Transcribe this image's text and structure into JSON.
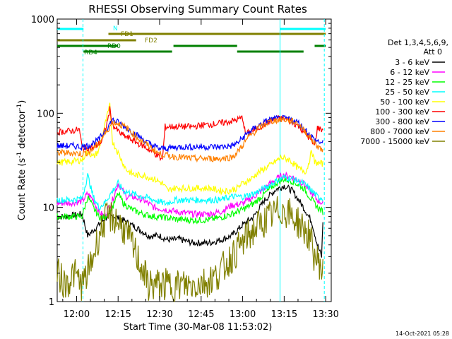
{
  "chart_data": {
    "type": "line",
    "title": "RHESSI Observing Summary Count Rates",
    "xlabel": "Start Time (30-Mar-08 11:53:02)",
    "ylabel": "Count Rate (s",
    "ylabel_sup": "-1",
    "ylabel_mid": " detector",
    "ylabel_sup2": "-1",
    "ylabel_end": ")",
    "yscale": "log",
    "ylim": [
      1,
      1000
    ],
    "xlim_minutes": [
      -7,
      92
    ],
    "x_ticks": [
      {
        "label": "12:00",
        "m": 0
      },
      {
        "label": "12:15",
        "m": 15
      },
      {
        "label": "12:30",
        "m": 30
      },
      {
        "label": "12:45",
        "m": 45
      },
      {
        "label": "13:00",
        "m": 60
      },
      {
        "label": "13:15",
        "m": 75
      },
      {
        "label": "13:30",
        "m": 90
      }
    ],
    "y_ticks": [
      {
        "label": "1",
        "v": 1
      },
      {
        "label": "10",
        "v": 10
      },
      {
        "label": "100",
        "v": 100
      },
      {
        "label": "1000",
        "v": 1000
      }
    ],
    "legend_header": [
      "Det 1,3,4,5,6,9,",
      "Att 0"
    ],
    "legend_placement": "right",
    "series": [
      {
        "name": "3 - 6 keV",
        "color": "#000000",
        "points": [
          [
            -7,
            8
          ],
          [
            -4,
            8
          ],
          [
            -2,
            8.2
          ],
          [
            2,
            8.5
          ],
          [
            4,
            5
          ],
          [
            8,
            6.5
          ],
          [
            11,
            8
          ],
          [
            14,
            8
          ],
          [
            18,
            7
          ],
          [
            22,
            6
          ],
          [
            26,
            5
          ],
          [
            30,
            5
          ],
          [
            33,
            4.5
          ],
          [
            37,
            4.6
          ],
          [
            42,
            4.2
          ],
          [
            48,
            4.2
          ],
          [
            52,
            4.5
          ],
          [
            56,
            5
          ],
          [
            60,
            6.5
          ],
          [
            64,
            8
          ],
          [
            68,
            12
          ],
          [
            72,
            15.5
          ],
          [
            75,
            17
          ],
          [
            78,
            15
          ],
          [
            82,
            10
          ],
          [
            85,
            7
          ],
          [
            87,
            4
          ],
          [
            88.5,
            3
          ],
          [
            89,
            7
          ]
        ]
      },
      {
        "name": "6 - 12 keV",
        "color": "#ff00ff",
        "points": [
          [
            -7,
            11
          ],
          [
            -2,
            11.2
          ],
          [
            2,
            11.6
          ],
          [
            4,
            14
          ],
          [
            6,
            12
          ],
          [
            8,
            9
          ],
          [
            10,
            8
          ],
          [
            13,
            12
          ],
          [
            15,
            18
          ],
          [
            18,
            13
          ],
          [
            20,
            13
          ],
          [
            24,
            12
          ],
          [
            28,
            10
          ],
          [
            32,
            9.5
          ],
          [
            36,
            9
          ],
          [
            42,
            8.5
          ],
          [
            48,
            8.5
          ],
          [
            52,
            9
          ],
          [
            56,
            10.5
          ],
          [
            60,
            11
          ],
          [
            64,
            13
          ],
          [
            68,
            16
          ],
          [
            72,
            20
          ],
          [
            75,
            22
          ],
          [
            78,
            21
          ],
          [
            82,
            18
          ],
          [
            85,
            14
          ],
          [
            87,
            12
          ],
          [
            89,
            11
          ]
        ]
      },
      {
        "name": "12 - 25 keV",
        "color": "#00ff00",
        "points": [
          [
            -7,
            8
          ],
          [
            -2,
            8
          ],
          [
            2,
            8
          ],
          [
            4,
            13
          ],
          [
            6,
            10
          ],
          [
            8,
            8
          ],
          [
            10,
            7.8
          ],
          [
            13,
            10
          ],
          [
            15,
            14
          ],
          [
            17,
            11
          ],
          [
            20,
            9.5
          ],
          [
            24,
            8.5
          ],
          [
            28,
            8
          ],
          [
            32,
            7.8
          ],
          [
            36,
            7.5
          ],
          [
            42,
            7.3
          ],
          [
            48,
            7.4
          ],
          [
            52,
            7.8
          ],
          [
            56,
            8.5
          ],
          [
            60,
            9.5
          ],
          [
            64,
            11
          ],
          [
            68,
            14
          ],
          [
            72,
            18
          ],
          [
            75,
            20
          ],
          [
            78,
            19
          ],
          [
            82,
            16
          ],
          [
            85,
            12
          ],
          [
            87,
            10
          ],
          [
            89,
            9
          ]
        ]
      },
      {
        "name": "25 - 50 keV",
        "color": "#00ffff",
        "points": [
          [
            -7,
            12
          ],
          [
            -2,
            12
          ],
          [
            2,
            12.5
          ],
          [
            4,
            22
          ],
          [
            6,
            13
          ],
          [
            8,
            10
          ],
          [
            10,
            11
          ],
          [
            13,
            15
          ],
          [
            15,
            18
          ],
          [
            17,
            15
          ],
          [
            20,
            14
          ],
          [
            24,
            13
          ],
          [
            28,
            12
          ],
          [
            32,
            11
          ],
          [
            36,
            12
          ],
          [
            42,
            12
          ],
          [
            48,
            12
          ],
          [
            52,
            12
          ],
          [
            56,
            13
          ],
          [
            60,
            13
          ],
          [
            64,
            14
          ],
          [
            68,
            16
          ],
          [
            72,
            19
          ],
          [
            75,
            21
          ],
          [
            78,
            20
          ],
          [
            82,
            18
          ],
          [
            85,
            15
          ],
          [
            87,
            13
          ],
          [
            89,
            12.5
          ]
        ]
      },
      {
        "name": "50 - 100 keV",
        "color": "#ffff00",
        "points": [
          [
            -7,
            30
          ],
          [
            -2,
            30.5
          ],
          [
            2,
            32
          ],
          [
            4,
            40
          ],
          [
            6,
            34
          ],
          [
            8,
            40
          ],
          [
            10,
            70
          ],
          [
            12,
            120
          ],
          [
            13,
            50
          ],
          [
            15,
            38
          ],
          [
            18,
            25
          ],
          [
            21,
            22
          ],
          [
            24,
            22
          ],
          [
            28,
            20
          ],
          [
            31,
            18
          ],
          [
            33,
            15
          ],
          [
            35,
            16
          ],
          [
            38,
            16
          ],
          [
            42,
            16
          ],
          [
            48,
            16
          ],
          [
            52,
            15
          ],
          [
            55,
            15
          ],
          [
            58,
            16
          ],
          [
            60,
            18
          ],
          [
            63,
            20
          ],
          [
            66,
            24
          ],
          [
            70,
            28
          ],
          [
            74,
            34
          ],
          [
            77,
            32
          ],
          [
            80,
            26
          ],
          [
            83,
            24
          ],
          [
            85,
            40
          ],
          [
            86,
            30
          ],
          [
            89,
            29
          ]
        ]
      },
      {
        "name": "100 - 300 keV",
        "color": "#ff0000",
        "points": [
          [
            -7,
            63
          ],
          [
            -2,
            65
          ],
          [
            1,
            67
          ],
          [
            2,
            43
          ],
          [
            6,
            43
          ],
          [
            9,
            50
          ],
          [
            11,
            78
          ],
          [
            12,
            110
          ],
          [
            13,
            75
          ],
          [
            16,
            60
          ],
          [
            20,
            52
          ],
          [
            24,
            45
          ],
          [
            28,
            38
          ],
          [
            31,
            32
          ],
          [
            32,
            72
          ],
          [
            38,
            72
          ],
          [
            42,
            72
          ],
          [
            46,
            75
          ],
          [
            50,
            77
          ],
          [
            54,
            80
          ],
          [
            58,
            85
          ],
          [
            60,
            90
          ],
          [
            61,
            60
          ],
          [
            65,
            68
          ],
          [
            69,
            80
          ],
          [
            73,
            88
          ],
          [
            76,
            86
          ],
          [
            80,
            74
          ],
          [
            83,
            60
          ],
          [
            86,
            45
          ],
          [
            87,
            70
          ],
          [
            90,
            65
          ]
        ]
      },
      {
        "name": "300 - 800 keV",
        "color": "#0000ff",
        "points": [
          [
            -7,
            45
          ],
          [
            -2,
            45
          ],
          [
            2,
            44
          ],
          [
            4,
            45
          ],
          [
            8,
            52
          ],
          [
            11,
            70
          ],
          [
            13,
            85
          ],
          [
            15,
            80
          ],
          [
            18,
            70
          ],
          [
            22,
            58
          ],
          [
            26,
            48
          ],
          [
            30,
            42
          ],
          [
            34,
            43
          ],
          [
            38,
            44
          ],
          [
            42,
            44
          ],
          [
            48,
            44
          ],
          [
            52,
            44
          ],
          [
            56,
            45
          ],
          [
            58,
            48
          ],
          [
            62,
            62
          ],
          [
            66,
            75
          ],
          [
            70,
            86
          ],
          [
            74,
            88
          ],
          [
            77,
            86
          ],
          [
            80,
            80
          ],
          [
            83,
            65
          ],
          [
            86,
            52
          ],
          [
            89,
            48
          ]
        ]
      },
      {
        "name": "800 - 7000 keV",
        "color": "#ff8000",
        "points": [
          [
            -7,
            38
          ],
          [
            -2,
            38
          ],
          [
            2,
            37
          ],
          [
            5,
            39
          ],
          [
            8,
            48
          ],
          [
            11,
            65
          ],
          [
            13,
            80
          ],
          [
            15,
            78
          ],
          [
            18,
            70
          ],
          [
            22,
            55
          ],
          [
            26,
            45
          ],
          [
            30,
            37
          ],
          [
            34,
            35
          ],
          [
            38,
            34
          ],
          [
            42,
            33
          ],
          [
            48,
            33
          ],
          [
            52,
            33
          ],
          [
            56,
            34
          ],
          [
            58,
            38
          ],
          [
            62,
            55
          ],
          [
            66,
            70
          ],
          [
            70,
            82
          ],
          [
            74,
            86
          ],
          [
            77,
            84
          ],
          [
            80,
            78
          ],
          [
            83,
            62
          ],
          [
            86,
            48
          ],
          [
            89,
            40
          ]
        ]
      },
      {
        "name": "7000 - 15000 keV",
        "color": "#808000",
        "points": [
          [
            -7,
            2
          ],
          [
            -4,
            1.5
          ],
          [
            -1,
            2
          ],
          [
            2,
            1.5
          ],
          [
            4,
            2
          ],
          [
            6,
            3
          ],
          [
            8,
            5
          ],
          [
            10,
            7
          ],
          [
            12,
            8
          ],
          [
            14,
            7.5
          ],
          [
            17,
            6
          ],
          [
            20,
            4
          ],
          [
            23,
            2.5
          ],
          [
            26,
            1.5
          ],
          [
            30,
            1.5
          ],
          [
            34,
            1.5
          ],
          [
            38,
            1.5
          ],
          [
            42,
            1.5
          ],
          [
            46,
            1.6
          ],
          [
            50,
            1.8
          ],
          [
            54,
            2.5
          ],
          [
            58,
            3.5
          ],
          [
            62,
            5
          ],
          [
            66,
            6.5
          ],
          [
            70,
            8
          ],
          [
            74,
            9.5
          ],
          [
            76,
            9
          ],
          [
            80,
            7
          ],
          [
            84,
            5
          ],
          [
            86,
            3
          ],
          [
            88,
            2.5
          ],
          [
            89,
            2
          ]
        ]
      }
    ],
    "vertical_lines": [
      {
        "m": 2.3,
        "style": "dashed"
      },
      {
        "m": 73.5,
        "style": "solid"
      },
      {
        "m": 89.5,
        "style": "dashed"
      }
    ],
    "status_bars": [
      {
        "label": "N",
        "color": "#00ffff",
        "segments": [
          [
            -7,
            2.5
          ],
          [
            73.5,
            90
          ]
        ],
        "level": 0
      },
      {
        "label": "FD1",
        "color": "#808000",
        "segments": [
          [
            11.5,
            90
          ]
        ],
        "level": 1
      },
      {
        "label": "FD2",
        "color": "#808000",
        "segments": [
          [
            -7,
            21.5
          ]
        ],
        "level": 2
      },
      {
        "label": "RD0",
        "color": "#008000",
        "segments": [
          [
            -7,
            15
          ],
          [
            35,
            58
          ],
          [
            86,
            90
          ]
        ],
        "level": 3
      },
      {
        "label": "RD4",
        "color": "#008000",
        "segments": [
          [
            2.5,
            34.5
          ],
          [
            58,
            82
          ]
        ],
        "level": 4
      }
    ]
  },
  "footer": {
    "date": "14-Oct-2021 05:28"
  }
}
